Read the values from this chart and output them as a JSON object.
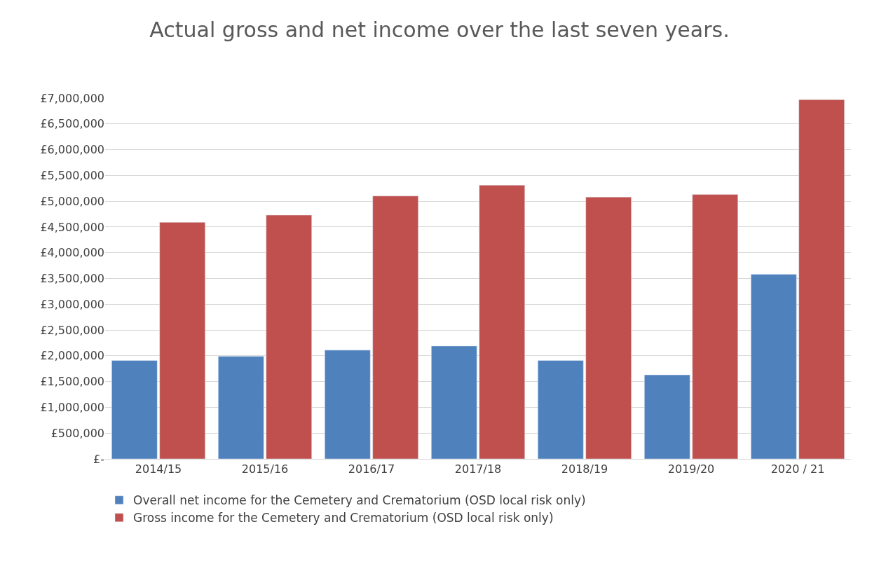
{
  "chart_data": {
    "type": "bar",
    "title": "Actual gross and net income over the last seven years.",
    "categories": [
      "2014/15",
      "2015/16",
      "2016/17",
      "2017/18",
      "2018/19",
      "2019/20",
      "2020 / 21"
    ],
    "series": [
      {
        "name": "Overall net income for the Cemetery and Crematorium (OSD local risk only)",
        "color": "#4f81bd",
        "values": [
          1910000,
          1990000,
          2110000,
          2190000,
          1910000,
          1630000,
          3580000
        ]
      },
      {
        "name": "Gross income for the Cemetery and Crematorium (OSD local risk only)",
        "color": "#c0504d",
        "values": [
          4590000,
          4730000,
          5100000,
          5310000,
          5080000,
          5130000,
          6970000
        ]
      }
    ],
    "ylim": [
      0,
      7000000
    ],
    "yticks": [
      {
        "value": 0,
        "label": "£-"
      },
      {
        "value": 500000,
        "label": "£500,000"
      },
      {
        "value": 1000000,
        "label": "£1,000,000"
      },
      {
        "value": 1500000,
        "label": "£1,500,000"
      },
      {
        "value": 2000000,
        "label": "£2,000,000"
      },
      {
        "value": 2500000,
        "label": "£2,500,000"
      },
      {
        "value": 3000000,
        "label": "£3,000,000"
      },
      {
        "value": 3500000,
        "label": "£3,500,000"
      },
      {
        "value": 4000000,
        "label": "£4,000,000"
      },
      {
        "value": 4500000,
        "label": "£4,500,000"
      },
      {
        "value": 5000000,
        "label": "£5,000,000"
      },
      {
        "value": 5500000,
        "label": "£5,500,000"
      },
      {
        "value": 6000000,
        "label": "£6,000,000"
      },
      {
        "value": 6500000,
        "label": "£6,500,000"
      },
      {
        "value": 7000000,
        "label": "£7,000,000"
      }
    ],
    "grid": "y",
    "legend": "bottom"
  }
}
